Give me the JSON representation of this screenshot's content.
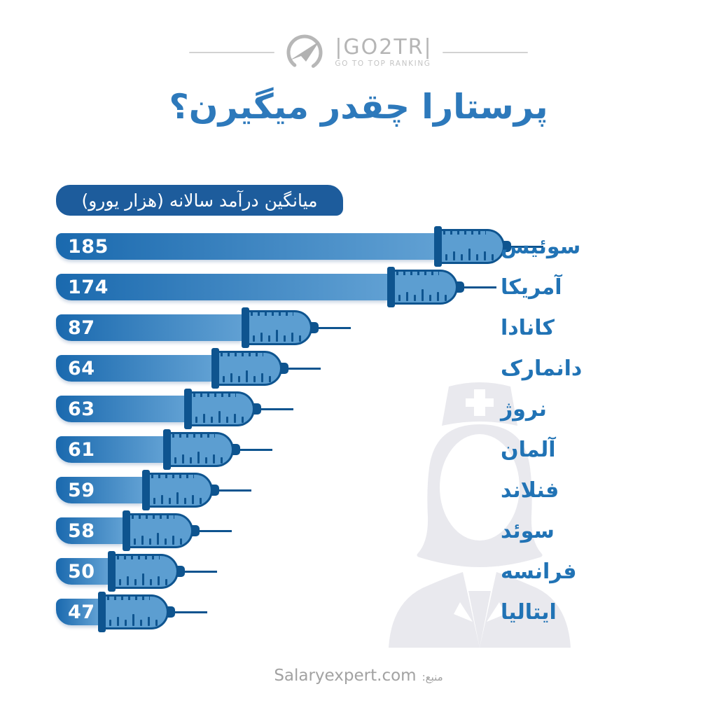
{
  "logo": {
    "brand_display": "|GO2TR|",
    "tagline": "GO TO TOP RANKING",
    "icon": "plane-in-circle-icon"
  },
  "title": "پرستارا چقدر میگیرن؟",
  "unit_badge": "میانگین درآمد سالانه (هزار یورو)",
  "source": {
    "label": "منبع:",
    "value": "Salaryexpert.com"
  },
  "watermark": "nurse-silhouette",
  "colors": {
    "title_blue": "#2d79bb",
    "label_blue": "#2173b5",
    "badge_bg": "#1d5c9c",
    "bar_gradient_start": "#1a69ae",
    "bar_gradient_end": "#60a0d3",
    "syringe_outline": "#0e548f",
    "barrel_fill": "#5c9ed1",
    "value_text": "#ffffff",
    "logo_gray": "#b5b5b5",
    "watermark_gray": "#e9e9ee",
    "source_gray": "#a2a2a2"
  },
  "chart_data": {
    "type": "bar",
    "orientation": "horizontal",
    "bar_style": "syringe",
    "title": "پرستارا چقدر میگیرن؟",
    "xlabel": "میانگین درآمد سالانه (هزار یورو)",
    "unit": "هزار یورو",
    "categories": [
      "سوئیس",
      "آمریکا",
      "کانادا",
      "دانمارک",
      "نروژ",
      "آلمان",
      "فنلاند",
      "سوئد",
      "فرانسه",
      "ایتالیا"
    ],
    "values": [
      185,
      174,
      87,
      64,
      63,
      61,
      59,
      58,
      50,
      47
    ],
    "value_label_position": "inside-left",
    "category_label_position": "right",
    "legend": "none",
    "grid": "off"
  }
}
